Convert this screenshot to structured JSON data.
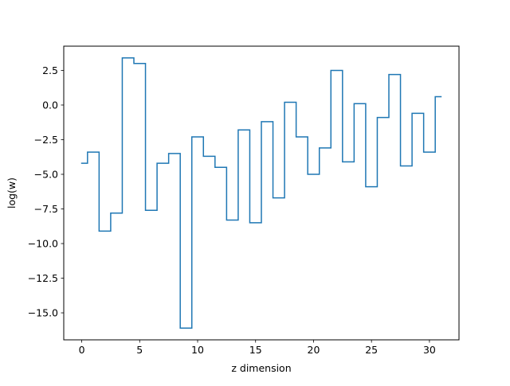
{
  "chart_data": {
    "type": "line",
    "drawstyle": "steps-mid",
    "title": "",
    "xlabel": "z dimension",
    "ylabel": "log(w)",
    "xlim": [
      -1.55,
      32.55
    ],
    "ylim": [
      -16.95,
      4.25
    ],
    "xticks": [
      0,
      5,
      10,
      15,
      20,
      25,
      30
    ],
    "xtick_labels": [
      "0",
      "5",
      "10",
      "15",
      "20",
      "25",
      "30"
    ],
    "yticks": [
      2.5,
      0,
      -2.5,
      -5,
      -7.5,
      -10,
      -12.5,
      -15
    ],
    "ytick_labels": [
      "2.5",
      "0.0",
      "−2.5",
      "−5.0",
      "−7.5",
      "−10.0",
      "−12.5",
      "−15.0"
    ],
    "grid": false,
    "series": [
      {
        "color": "#1f77b4",
        "x": [
          0,
          1,
          2,
          3,
          4,
          5,
          6,
          7,
          8,
          9,
          10,
          11,
          12,
          13,
          14,
          15,
          16,
          17,
          18,
          19,
          20,
          21,
          22,
          23,
          24,
          25,
          26,
          27,
          28,
          29,
          30,
          31
        ],
        "values": [
          -4.2,
          -3.4,
          -9.1,
          -7.8,
          3.4,
          3.0,
          -7.6,
          -4.2,
          -3.5,
          -16.1,
          -2.3,
          -3.7,
          -4.5,
          -8.3,
          -1.8,
          -8.5,
          -1.2,
          -6.7,
          0.2,
          -2.3,
          -5.0,
          -3.1,
          2.5,
          -4.1,
          0.1,
          -5.9,
          -0.9,
          2.2,
          -4.4,
          -0.6,
          -3.4,
          0.6
        ]
      }
    ]
  }
}
